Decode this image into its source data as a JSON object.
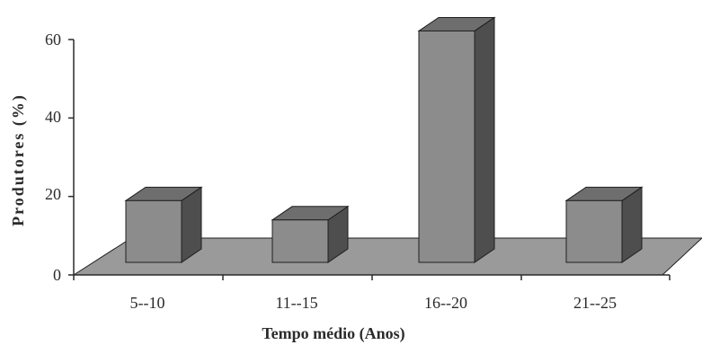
{
  "chart_data": {
    "type": "bar",
    "categories": [
      "5--10",
      "11--15",
      "16--20",
      "21--25"
    ],
    "values": [
      16,
      11,
      60,
      16
    ],
    "xlabel": "Tempo médio (Anos)",
    "ylabel": "Produtores (%)",
    "ylim": [
      0,
      60
    ],
    "yticks": [
      "0",
      "20",
      "40",
      "60"
    ],
    "grid": false,
    "three_d": true,
    "colors": {
      "bar_front": "#8c8c8c",
      "bar_top": "#6e6e6e",
      "bar_side": "#4e4e4e",
      "floor": "#9a9a9a",
      "edge": "#1f1f1f"
    }
  }
}
